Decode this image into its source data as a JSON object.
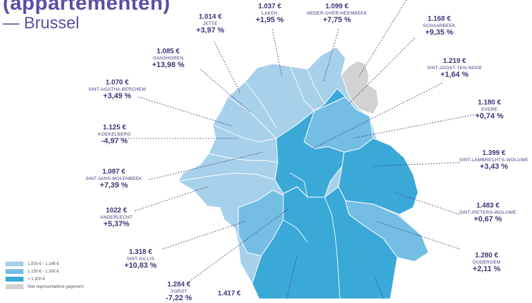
{
  "header": {
    "title": "(appartementen)",
    "subtitle": "— Brussel"
  },
  "colors": {
    "light": "#a7d0ea",
    "mid": "#74bde3",
    "dark": "#3ba9d8",
    "grey": "#d2d2d2",
    "text": "#3d3478"
  },
  "labels": [
    {
      "id": "jette",
      "price": "1.014 €",
      "name": "JETTE",
      "pct": "+3,97 %"
    },
    {
      "id": "laken",
      "price": "1.037 €",
      "name": "LAKEN",
      "pct": "+1,95 %"
    },
    {
      "id": "noh",
      "price": "1.099 €",
      "name": "NEDER-OVER-HEEMBEEK",
      "pct": "+7,75 %"
    },
    {
      "id": "schaarbeek",
      "price": "1.168 €",
      "name": "SCHAARBEEK",
      "pct": "+9,35 %"
    },
    {
      "id": "ganshoren",
      "price": "1.085 €",
      "name": "GANSHOREN",
      "pct": "+13,98 %"
    },
    {
      "id": "sjtn",
      "price": "1.219 €",
      "name": "SINT-JOOST-TEN-NODE",
      "pct": "+1,64 %"
    },
    {
      "id": "sab",
      "price": "1.070 €",
      "name": "SINT-AGATHA-BERCHEM",
      "pct": "+3,49 %"
    },
    {
      "id": "evere",
      "price": "1.180 €",
      "name": "EVERE",
      "pct": "+0,74 %"
    },
    {
      "id": "koekelberg",
      "price": "1.125 €",
      "name": "KOEKELBERG",
      "pct": "-4,97 %"
    },
    {
      "id": "slw",
      "price": "1.399 €",
      "name": "SINT-LAMBRECHTS-WOLUWE",
      "pct": "+3,43 %"
    },
    {
      "id": "sjm",
      "price": "1.087 €",
      "name": "SINT-JANS-MOLENBEEK",
      "pct": "+7,39 %"
    },
    {
      "id": "anderlecht",
      "price": "1022 €",
      "name": "ANDERLECHT",
      "pct": "+5,37%"
    },
    {
      "id": "spw",
      "price": "1.483 €",
      "name": "SINT-PIETERS-WOLUWE",
      "pct": "+0,67 %"
    },
    {
      "id": "sintgillis",
      "price": "1.318 €",
      "name": "SINT-GILLIS",
      "pct": "+10,83 %"
    },
    {
      "id": "oudergem",
      "price": "1.280 €",
      "name": "OUDERGEM",
      "pct": "+2,11 %"
    },
    {
      "id": "vorst",
      "price": "1.284 €",
      "name": "VORST",
      "pct": "-7,22 %"
    },
    {
      "id": "bottom",
      "price": "1.417 €",
      "name": "",
      "pct": ""
    }
  ],
  "legend": [
    {
      "label": "1.000 € - 1.149 €",
      "color": "#a7d0ea"
    },
    {
      "label": "1.150 € - 1.300 €",
      "color": "#74bde3"
    },
    {
      "label": "> 1.300 €",
      "color": "#3ba9d8"
    },
    {
      "label": "Niet representatieve gegevens",
      "color": "#d2d2d2"
    }
  ]
}
